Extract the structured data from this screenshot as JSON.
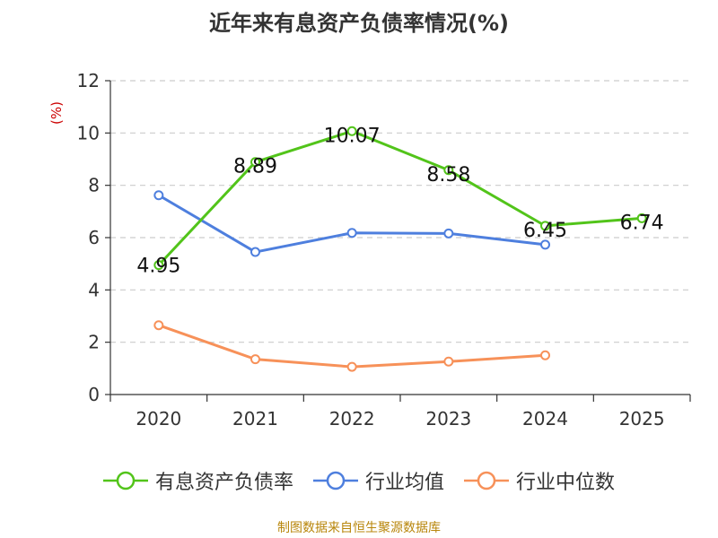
{
  "chart_data": {
    "type": "line",
    "title": "近年来有息资产负债率情况(%)",
    "ylabel": "(%)",
    "categories": [
      "2020",
      "2021",
      "2022",
      "2023",
      "2024",
      "2025"
    ],
    "ylim": [
      0,
      12
    ],
    "yticks": [
      0,
      2,
      4,
      6,
      8,
      10,
      12
    ],
    "grid": true,
    "legend_placement": "bottom",
    "series": [
      {
        "name": "有息资产负债率",
        "color": "#52c41a",
        "values": [
          4.95,
          8.89,
          10.07,
          8.58,
          6.45,
          6.74
        ],
        "labels": [
          "4.95",
          "8.89",
          "10.07",
          "8.58",
          "6.45",
          "6.74"
        ]
      },
      {
        "name": "行业均值",
        "color": "#4e7fde",
        "values": [
          7.62,
          5.45,
          6.18,
          6.16,
          5.73,
          null
        ]
      },
      {
        "name": "行业中位数",
        "color": "#f79159",
        "values": [
          2.65,
          1.35,
          1.06,
          1.26,
          1.5,
          null
        ]
      }
    ]
  },
  "source": "制图数据来自恒生聚源数据库"
}
